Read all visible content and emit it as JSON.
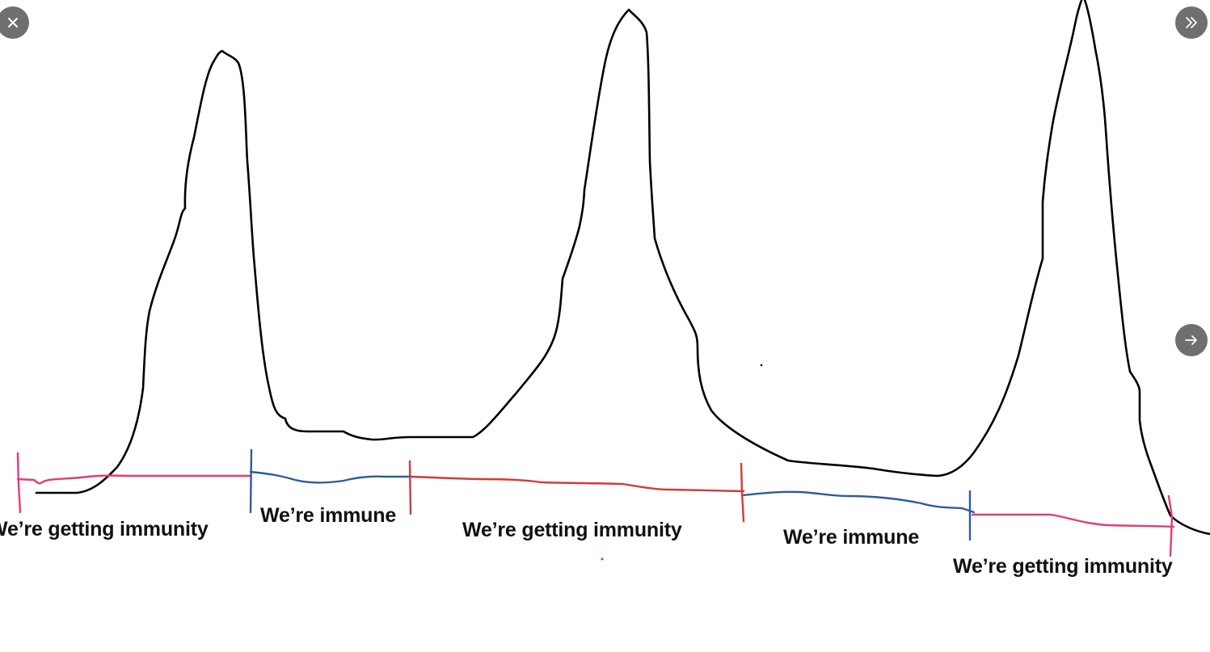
{
  "viewer": {
    "close_icon": "close-icon",
    "expand_icon": "double-chevron-right-icon",
    "next_icon": "arrow-right-icon",
    "button_color": "#6f6f6f"
  },
  "diagram": {
    "curve_color": "#000000",
    "colors": {
      "pink": "#e23c78",
      "red": "#d23a3a",
      "blue": "#2e5b9a"
    },
    "labels": [
      {
        "id": "l1",
        "text": "We’re getting immunity"
      },
      {
        "id": "l2",
        "text": "We’re immune"
      },
      {
        "id": "l3",
        "text": "We’re getting immunity"
      },
      {
        "id": "l4",
        "text": "We’re immune"
      },
      {
        "id": "l5",
        "text": "We’re getting immunity"
      }
    ]
  }
}
